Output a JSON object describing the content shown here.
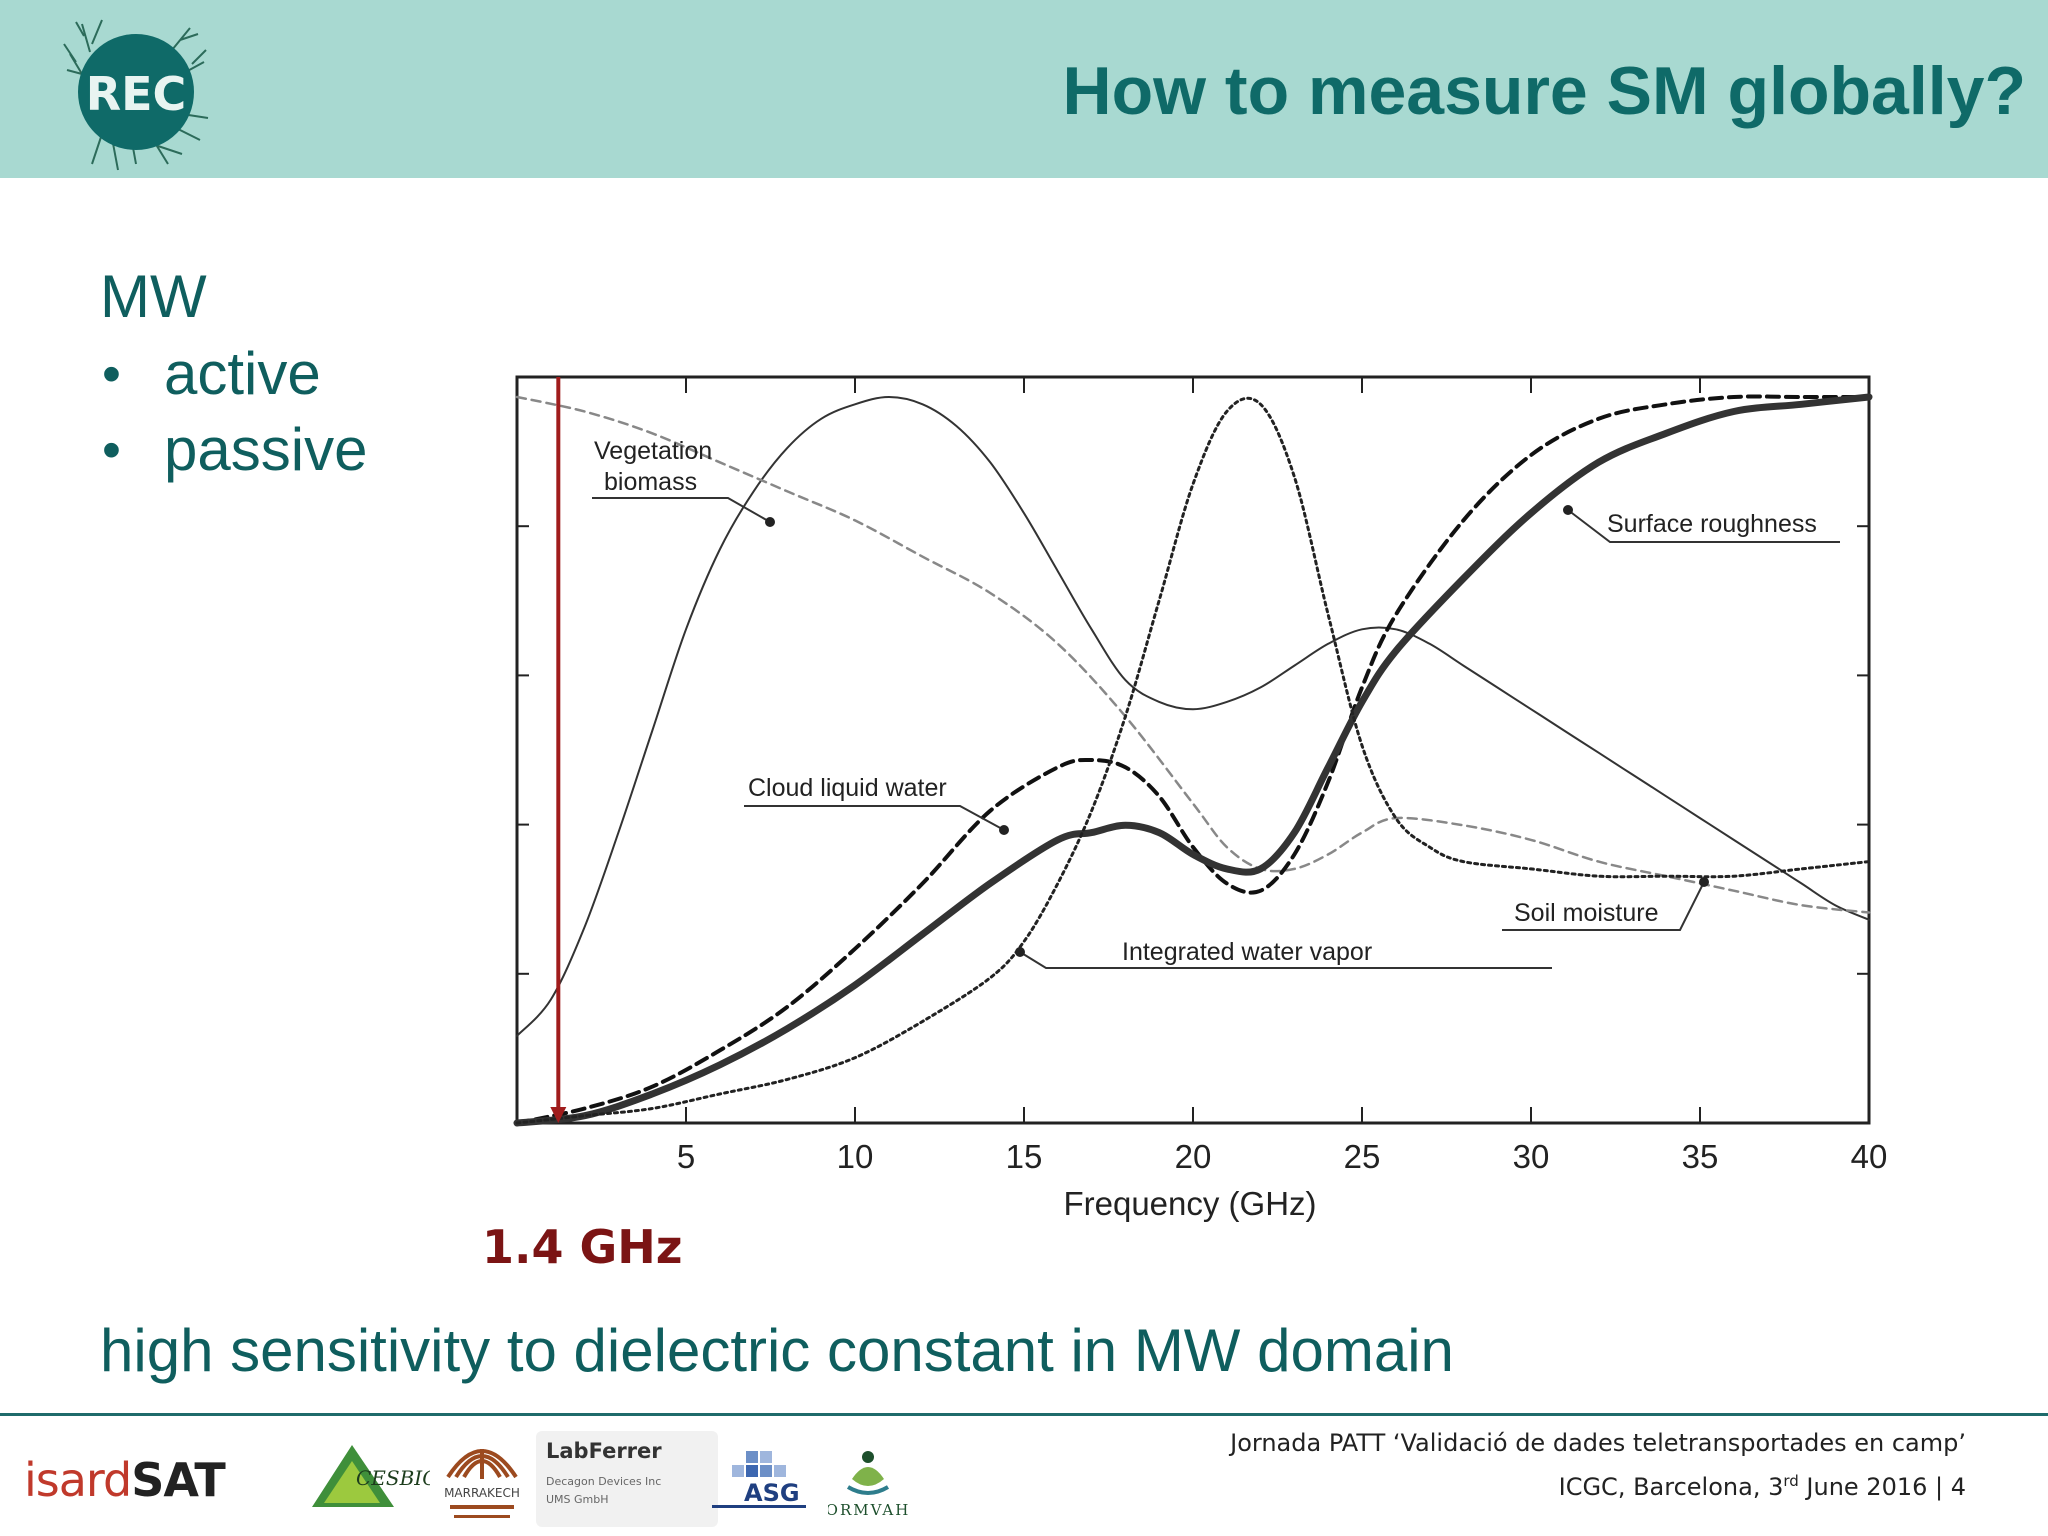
{
  "header": {
    "title": "How to measure SM globally?",
    "logo_text": "REC"
  },
  "body": {
    "heading": "MW",
    "bullets": [
      "active",
      "passive"
    ],
    "highlight_label": "1.4 GHz",
    "bottom_text": "high sensitivity to dielectric constant in MW domain"
  },
  "chart_data": {
    "type": "line",
    "xlabel": "Frequency (GHz)",
    "xlim": [
      0,
      40
    ],
    "ylim": [
      0,
      1
    ],
    "xticks": [
      5,
      10,
      15,
      20,
      25,
      30,
      35,
      40
    ],
    "grid": false,
    "marker_line": {
      "x": 1.4,
      "color": "#a01c1c"
    },
    "series": [
      {
        "name": "Vegetation biomass",
        "style": "thin-solid",
        "x": [
          0,
          1,
          2,
          3,
          4,
          5,
          6,
          7,
          8,
          9,
          10,
          11,
          12,
          13,
          14,
          15,
          16,
          17,
          18,
          19,
          20,
          21,
          22,
          23,
          24,
          25,
          26,
          27,
          28,
          29,
          30,
          31,
          32,
          33,
          34,
          35,
          36,
          37,
          38,
          39,
          40
        ],
        "y": [
          0.12,
          0.17,
          0.27,
          0.4,
          0.54,
          0.68,
          0.79,
          0.87,
          0.93,
          0.97,
          0.99,
          1.0,
          0.99,
          0.96,
          0.91,
          0.84,
          0.76,
          0.68,
          0.61,
          0.58,
          0.57,
          0.58,
          0.6,
          0.63,
          0.66,
          0.68,
          0.68,
          0.66,
          0.63,
          0.6,
          0.57,
          0.54,
          0.51,
          0.48,
          0.45,
          0.42,
          0.39,
          0.36,
          0.33,
          0.3,
          0.28
        ]
      },
      {
        "name": "Soil moisture",
        "style": "grey-dashed",
        "x": [
          0,
          2,
          4,
          6,
          8,
          10,
          12,
          14,
          16,
          18,
          20,
          21,
          22,
          23,
          24,
          25,
          26,
          28,
          30,
          32,
          34,
          36,
          38,
          40
        ],
        "y": [
          1.0,
          0.98,
          0.95,
          0.91,
          0.87,
          0.83,
          0.78,
          0.73,
          0.66,
          0.56,
          0.44,
          0.38,
          0.35,
          0.35,
          0.37,
          0.4,
          0.42,
          0.41,
          0.39,
          0.36,
          0.34,
          0.32,
          0.3,
          0.29
        ]
      },
      {
        "name": "Cloud liquid water",
        "style": "bold-dashed",
        "x": [
          0,
          2,
          4,
          6,
          8,
          10,
          12,
          14,
          16,
          17,
          18,
          19,
          20,
          21,
          22,
          23,
          24,
          25,
          26,
          28,
          30,
          32,
          34,
          36,
          38,
          40
        ],
        "y": [
          0.0,
          0.02,
          0.05,
          0.1,
          0.16,
          0.24,
          0.33,
          0.43,
          0.49,
          0.5,
          0.49,
          0.45,
          0.38,
          0.33,
          0.32,
          0.37,
          0.47,
          0.6,
          0.7,
          0.83,
          0.92,
          0.97,
          0.99,
          1.0,
          1.0,
          1.0
        ]
      },
      {
        "name": "Surface roughness",
        "style": "thick-solid",
        "x": [
          0,
          2,
          4,
          6,
          8,
          10,
          12,
          14,
          16,
          17,
          18,
          19,
          20,
          21,
          22,
          23,
          24,
          25,
          26,
          28,
          30,
          32,
          34,
          36,
          38,
          40
        ],
        "y": [
          0.0,
          0.01,
          0.04,
          0.08,
          0.13,
          0.19,
          0.26,
          0.33,
          0.39,
          0.4,
          0.41,
          0.4,
          0.37,
          0.35,
          0.35,
          0.4,
          0.49,
          0.58,
          0.65,
          0.75,
          0.84,
          0.91,
          0.95,
          0.98,
          0.99,
          1.0
        ]
      },
      {
        "name": "Integrated water vapor",
        "style": "dotted",
        "x": [
          0,
          2,
          4,
          6,
          8,
          10,
          12,
          14,
          15,
          16,
          17,
          18,
          19,
          20,
          21,
          22,
          23,
          24,
          25,
          26,
          27,
          28,
          30,
          32,
          34,
          36,
          38,
          40
        ],
        "y": [
          0.0,
          0.01,
          0.02,
          0.04,
          0.06,
          0.09,
          0.14,
          0.2,
          0.25,
          0.33,
          0.43,
          0.56,
          0.72,
          0.88,
          0.98,
          0.99,
          0.89,
          0.7,
          0.52,
          0.42,
          0.38,
          0.36,
          0.35,
          0.34,
          0.34,
          0.34,
          0.35,
          0.36
        ]
      }
    ]
  },
  "chart_labels": {
    "vegetation": [
      "Vegetation",
      "biomass"
    ],
    "surface": "Surface roughness",
    "cloud": "Cloud liquid water",
    "soil": "Soil moisture",
    "vapor": "Integrated water vapor"
  },
  "footer": {
    "line1": "Jornada PATT ‘Validació de dades teletransportades en camp’",
    "line2_pre": "ICGC, Barcelona, 3",
    "line2_sup": "rd",
    "line2_post": " June 2016 | 4"
  },
  "logos": {
    "isardsat_a": "isard",
    "isardsat_b": "SAT",
    "cesbio": "CESBIO",
    "marrakech": "MARRAKECH",
    "labferrer_title": "LabFerrer",
    "labferrer_sub1": "Decagon Devices Inc",
    "labferrer_sub2": "UMS GmbH",
    "asg": "ASG",
    "ormvah": "ORMVAH"
  }
}
